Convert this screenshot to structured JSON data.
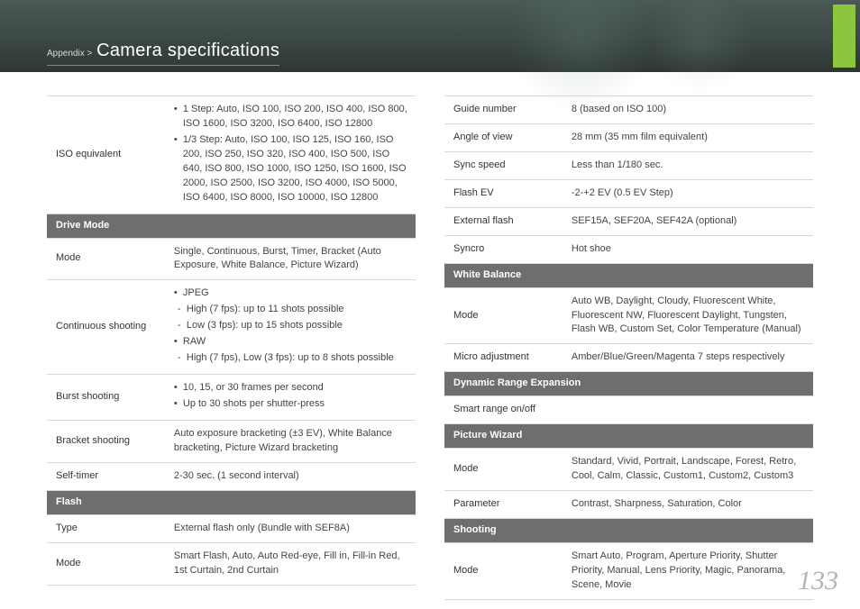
{
  "header": {
    "breadcrumb_prefix": "Appendix > ",
    "title": "Camera specifications",
    "accent_color": "#8cc63f",
    "header_bg": "#3d4a47"
  },
  "page_number": "133",
  "left_column": {
    "iso_equivalent": {
      "label": "ISO equivalent",
      "bullet1": "1 Step: Auto, ISO 100, ISO 200, ISO 400, ISO 800, ISO 1600, ISO 3200, ISO 6400, ISO 12800",
      "bullet2": "1/3 Step: Auto, ISO 100, ISO 125, ISO 160,  ISO 200, ISO 250, ISO 320, ISO 400, ISO 500, ISO 640, ISO 800, ISO 1000, ISO 1250, ISO 1600, ISO 2000, ISO 2500, ISO 3200, ISO 4000, ISO 5000, ISO 6400, ISO 8000, ISO 10000, ISO 12800"
    },
    "drive_mode": {
      "section": "Drive Mode",
      "mode_label": "Mode",
      "mode_value": "Single, Continuous, Burst, Timer, Bracket (Auto Exposure, White Balance, Picture Wizard)",
      "continuous_label": "Continuous shooting",
      "cont_b1": "JPEG",
      "cont_b1a": "High (7 fps): up to 11 shots possible",
      "cont_b1b": "Low (3 fps): up to 15 shots possible",
      "cont_b2": "RAW",
      "cont_b2a": "High (7 fps), Low (3 fps): up to 8 shots possible",
      "burst_label": "Burst shooting",
      "burst_b1": "10, 15, or 30 frames per second",
      "burst_b2": "Up to 30 shots per shutter-press",
      "bracket_label": "Bracket shooting",
      "bracket_value": "Auto exposure bracketing (±3 EV), White Balance bracketing, Picture Wizard bracketing",
      "self_timer_label": "Self-timer",
      "self_timer_value": "2-30 sec. (1 second interval)"
    },
    "flash": {
      "section": "Flash",
      "type_label": "Type",
      "type_value": "External flash only (Bundle with SEF8A)",
      "mode_label": "Mode",
      "mode_value": "Smart Flash, Auto, Auto Red-eye, Fill in, Fill-in Red, 1st Curtain, 2nd Curtain"
    }
  },
  "right_column": {
    "flash_cont": {
      "guide_label": "Guide number",
      "guide_value": "8 (based on ISO 100)",
      "angle_label": "Angle of view",
      "angle_value": "28 mm (35 mm film equivalent)",
      "sync_label": "Sync speed",
      "sync_value": "Less than 1/180 sec.",
      "flashev_label": "Flash EV",
      "flashev_value": "-2-+2 EV (0.5 EV Step)",
      "ext_label": "External flash",
      "ext_value": "SEF15A, SEF20A, SEF42A (optional)",
      "syncro_label": "Syncro",
      "syncro_value": "Hot shoe"
    },
    "white_balance": {
      "section": "White Balance",
      "mode_label": "Mode",
      "mode_value": "Auto WB, Daylight, Cloudy, Fluorescent White, Fluorescent NW, Fluorescent Daylight, Tungsten, Flash WB, Custom Set, Color Temperature (Manual)",
      "micro_label": "Micro adjustment",
      "micro_value": "Amber/Blue/Green/Magenta 7 steps respectively"
    },
    "dre": {
      "section": "Dynamic Range Expansion",
      "value": "Smart range on/off"
    },
    "picture_wizard": {
      "section": "Picture Wizard",
      "mode_label": "Mode",
      "mode_value": "Standard, Vivid, Portrait, Landscape, Forest, Retro, Cool, Calm, Classic, Custom1, Custom2, Custom3",
      "param_label": "Parameter",
      "param_value": "Contrast, Sharpness, Saturation, Color"
    },
    "shooting": {
      "section": "Shooting",
      "mode_label": "Mode",
      "mode_value": "Smart Auto, Program, Aperture Priority, Shutter Priority,  Manual, Lens Priority, Magic, Panorama, Scene, Movie"
    }
  }
}
